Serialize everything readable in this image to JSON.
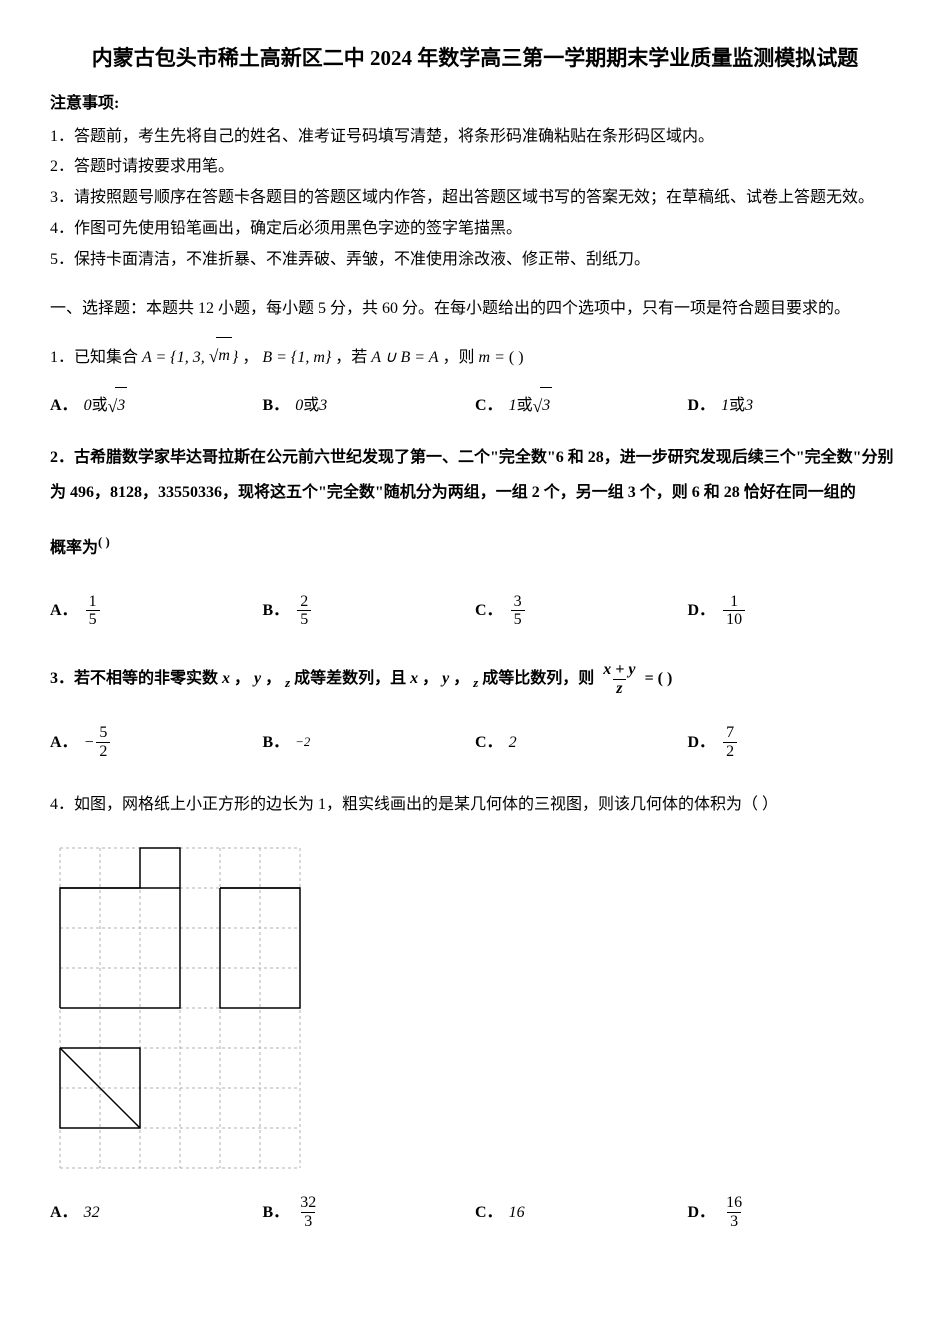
{
  "title": "内蒙古包头市稀土高新区二中 2024 年数学高三第一学期期末学业质量监测模拟试题",
  "notice": {
    "header": "注意事项:",
    "items": [
      "1．答题前，考生先将自己的姓名、准考证号码填写清楚，将条形码准确粘贴在条形码区域内。",
      "2．答题时请按要求用笔。",
      "3．请按照题号顺序在答题卡各题目的答题区域内作答，超出答题区域书写的答案无效；在草稿纸、试卷上答题无效。",
      "4．作图可先使用铅笔画出，确定后必须用黑色字迹的签字笔描黑。",
      "5．保持卡面清洁，不准折暴、不准弄破、弄皱，不准使用涂改液、修正带、刮纸刀。"
    ]
  },
  "section1": {
    "header": "一、选择题：本题共 12 小题，每小题 5 分，共 60 分。在每小题给出的四个选项中，只有一项是符合题目要求的。"
  },
  "q1": {
    "prefix": "1．已知集合 ",
    "set_a_left": "A = {1, 3, ",
    "set_a_sqrt": "m",
    "set_a_right": "}",
    "sep1": "，",
    "set_b": "B = {1, m}",
    "sep2": "，若 ",
    "union": "A ∪ B = A",
    "sep3": "，则 ",
    "m_eq": "m = ",
    "paren": "(  )",
    "options": {
      "a_label": "A．",
      "a_val1": "0",
      "a_or": " 或 ",
      "a_val2": "3",
      "b_label": "B．",
      "b_val1": "0",
      "b_or": " 或 ",
      "b_val2": "3",
      "c_label": "C．",
      "c_val1": "1",
      "c_or": " 或 ",
      "c_val2": "3",
      "d_label": "D．",
      "d_val1": "1",
      "d_or": " 或 ",
      "d_val2": "3"
    }
  },
  "q2": {
    "text": "2．古希腊数学家毕达哥拉斯在公元前六世纪发现了第一、二个\"完全数\"6 和 28，进一步研究发现后续三个\"完全数\"分别为 496，8128，33550336，现将这五个\"完全数\"随机分为两组，一组 2 个，另一组 3 个，则 6 和 28 恰好在同一组的",
    "text2": "概率为",
    "paren": "(    )",
    "options": {
      "a_label": "A．",
      "a_num": "1",
      "a_den": "5",
      "b_label": "B．",
      "b_num": "2",
      "b_den": "5",
      "c_label": "C．",
      "c_num": "3",
      "c_den": "5",
      "d_label": "D．",
      "d_num": "1",
      "d_den": "10"
    }
  },
  "q3": {
    "prefix": "3．若不相等的非零实数 ",
    "x": "x",
    "sep1": "，",
    "y": "y",
    "sep2": "，",
    "z": "z",
    "mid1": " 成等差数列，且 ",
    "mid2": " 成等比数列，则 ",
    "frac_num": "x + y",
    "frac_den": "z",
    "eq": " = ",
    "paren": "(    )",
    "options": {
      "a_label": "A．",
      "a_neg": "−",
      "a_num": "5",
      "a_den": "2",
      "b_label": "B．",
      "b_val": "−2",
      "c_label": "C．",
      "c_val": "2",
      "d_label": "D．",
      "d_num": "7",
      "d_den": "2"
    }
  },
  "q4": {
    "text": "4．如图，网格纸上小正方形的边长为 1，粗实线画出的是某几何体的三视图，则该几何体的体积为（  ）",
    "diagram": {
      "cell_size": 40,
      "cols": 6,
      "rows": 8,
      "grid_color": "#b0b0b0",
      "grid_dash": "3,3",
      "line_color": "#000000",
      "line_width": 1.5
    },
    "options": {
      "a_label": "A．",
      "a_val": "32",
      "b_label": "B．",
      "b_num": "32",
      "b_den": "3",
      "c_label": "C．",
      "c_val": "16",
      "d_label": "D．",
      "d_num": "16",
      "d_den": "3"
    }
  }
}
